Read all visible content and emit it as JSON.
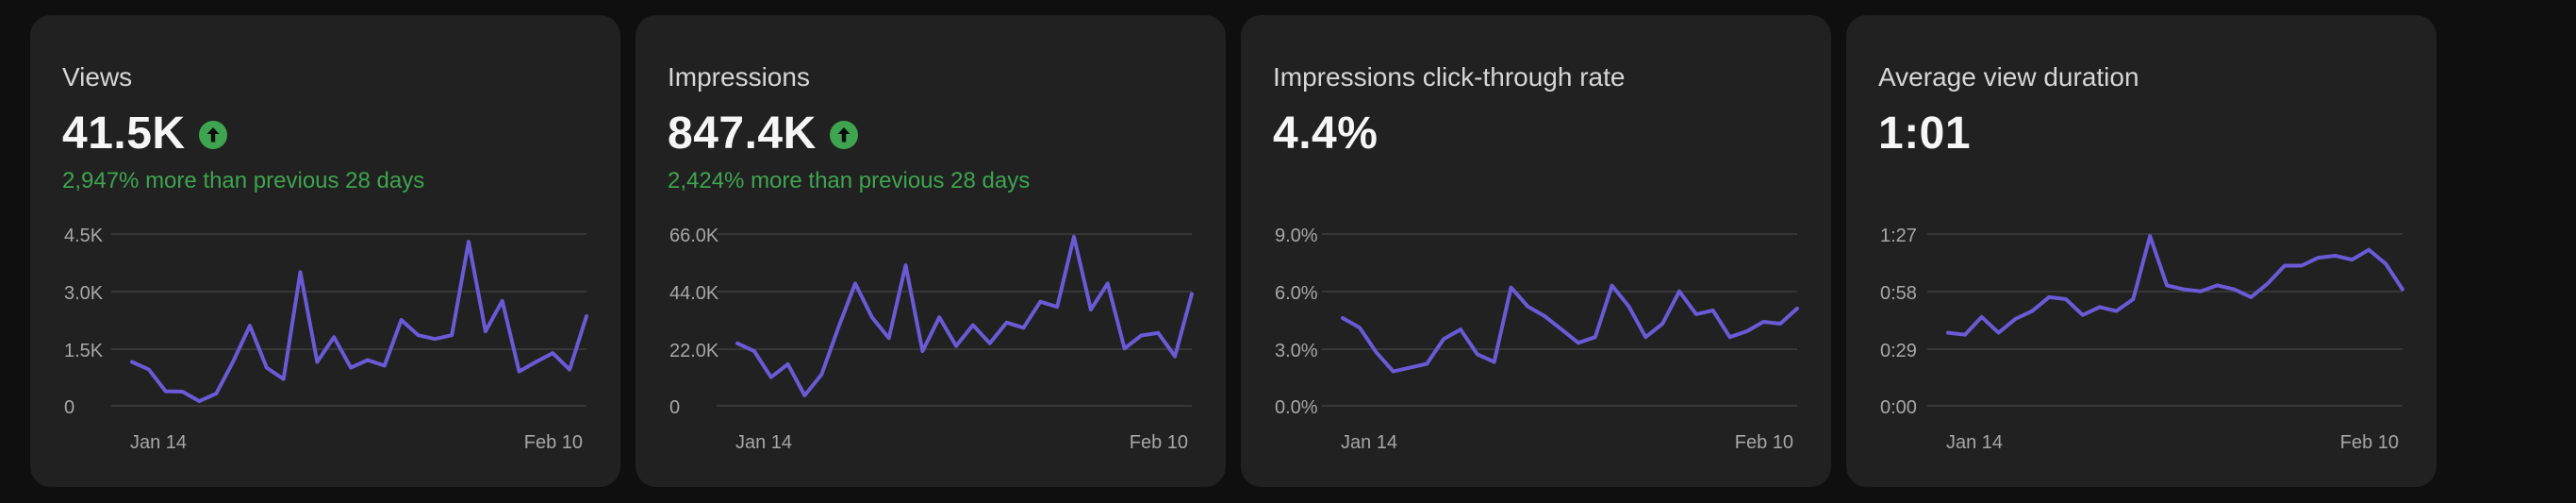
{
  "colors": {
    "background": "#0f0f0f",
    "card": "#212121",
    "line": "#6a5ad6",
    "positive": "#3ea44f",
    "grid": "#3f3f3f",
    "axis_text": "#a7a7a7"
  },
  "cards": [
    {
      "title": "Views",
      "value": "41.5K",
      "trend_icon": "arrow-up-circle-icon",
      "change": "2,947% more than previous 28 days",
      "chart_data": {
        "type": "line",
        "y_ticks": [
          "4.5K",
          "3.0K",
          "1.5K",
          "0"
        ],
        "ylim": [
          0,
          4500
        ],
        "x_labels": [
          "Jan 14",
          "Feb 10"
        ],
        "values": [
          1150,
          950,
          380,
          370,
          120,
          320,
          1150,
          2100,
          1000,
          700,
          3500,
          1150,
          1800,
          1000,
          1200,
          1050,
          2250,
          1850,
          1750,
          1850,
          4300,
          1950,
          2750,
          900,
          1150,
          1380,
          950,
          2350
        ]
      }
    },
    {
      "title": "Impressions",
      "value": "847.4K",
      "trend_icon": "arrow-up-circle-icon",
      "change": "2,424% more than previous 28 days",
      "chart_data": {
        "type": "line",
        "y_ticks": [
          "66.0K",
          "44.0K",
          "22.0K",
          "0"
        ],
        "ylim": [
          0,
          66000
        ],
        "x_labels": [
          "Jan 14",
          "Feb 10"
        ],
        "values": [
          24000,
          21000,
          11000,
          16000,
          4000,
          12000,
          30000,
          47000,
          34000,
          26000,
          54000,
          21000,
          34000,
          23000,
          31000,
          24000,
          32000,
          30000,
          40000,
          38000,
          65000,
          37000,
          47000,
          22000,
          27000,
          28000,
          19000,
          43000
        ]
      }
    },
    {
      "title": "Impressions click-through rate",
      "value": "4.4%",
      "trend_icon": "",
      "change": "",
      "chart_data": {
        "type": "line",
        "y_ticks": [
          "9.0%",
          "6.0%",
          "3.0%",
          "0.0%"
        ],
        "ylim": [
          0,
          9
        ],
        "x_labels": [
          "Jan 14",
          "Feb 10"
        ],
        "values": [
          4.6,
          4.1,
          2.8,
          1.8,
          2.0,
          2.2,
          3.5,
          4.0,
          2.7,
          2.3,
          6.2,
          5.2,
          4.7,
          4.0,
          3.3,
          3.6,
          6.3,
          5.2,
          3.6,
          4.3,
          6.0,
          4.8,
          5.0,
          3.6,
          3.9,
          4.4,
          4.3,
          5.1
        ]
      }
    },
    {
      "title": "Average view duration",
      "value": "1:01",
      "trend_icon": "",
      "change": "",
      "chart_data": {
        "type": "line",
        "y_ticks": [
          "1:27",
          "0:58",
          "0:29",
          "0:00"
        ],
        "ylim": [
          0,
          87
        ],
        "x_labels": [
          "Jan 14",
          "Feb 10"
        ],
        "values": [
          37,
          36,
          45,
          37,
          44,
          48,
          55,
          54,
          46,
          50,
          48,
          54,
          86,
          61,
          59,
          58,
          61,
          59,
          55,
          62,
          71,
          71,
          75,
          76,
          74,
          79,
          72,
          59
        ]
      }
    }
  ]
}
